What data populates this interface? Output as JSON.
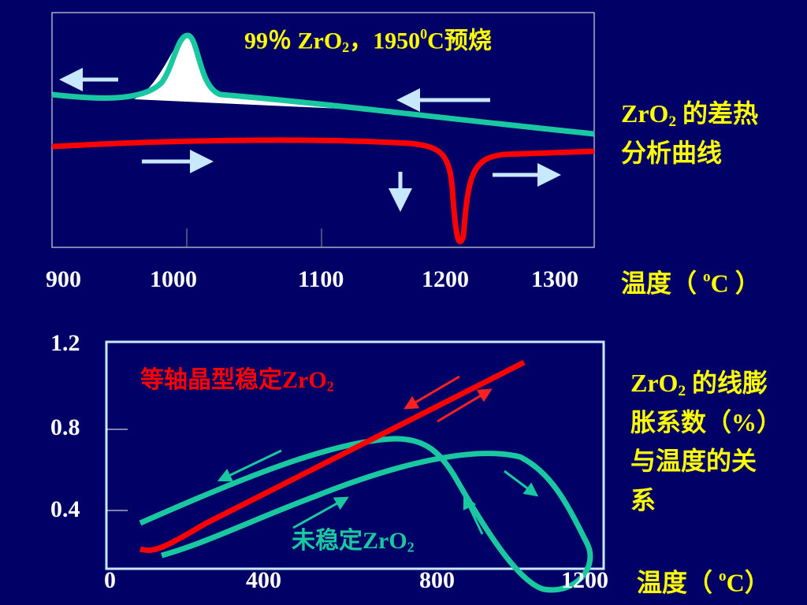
{
  "dta": {
    "title": [
      "99％ ZrO",
      "2",
      "，1950",
      "0",
      "C预烧"
    ],
    "caption": [
      "ZrO",
      "2",
      " 的差热分析曲线"
    ],
    "x_ticks": [
      "900",
      "1000",
      "1100",
      "1200",
      "1300"
    ],
    "x_label": [
      "温度（ ",
      "o",
      "C ）"
    ]
  },
  "dilatometry": {
    "y_ticks": [
      "1.2",
      "0.8",
      "0.4"
    ],
    "x_ticks": [
      "0",
      "400",
      "800",
      "1200"
    ],
    "x_label": [
      "温度（ ",
      "o",
      "C）"
    ],
    "caption": [
      "ZrO",
      "2",
      " 的线膨胀系数（%）与温度的关系"
    ],
    "stabilized_label": [
      "等轴晶型稳定ZrO",
      "2"
    ],
    "unstabilized_label": [
      "未稳定ZrO",
      "2"
    ]
  }
}
